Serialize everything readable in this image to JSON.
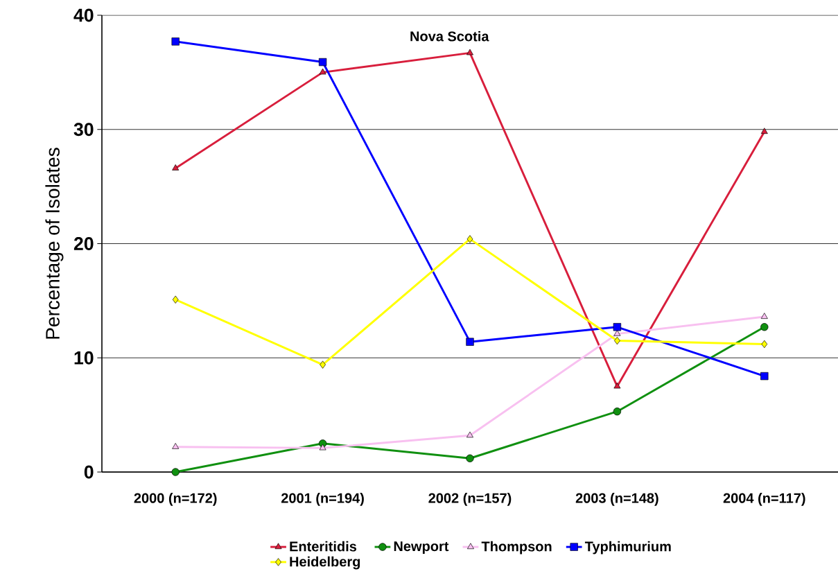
{
  "chart_data": {
    "type": "line",
    "title": "Nova Scotia",
    "ylabel": "Percentage of Isolates",
    "categories": [
      "2000 (n=172)",
      "2001 (n=194)",
      "2002 (n=157)",
      "2003 (n=148)",
      "2004 (n=117)"
    ],
    "series": [
      {
        "name": "Enteritidis",
        "color": "#d81e3c",
        "marker": "triangle",
        "values": [
          26.6,
          35.0,
          36.7,
          7.5,
          29.8
        ]
      },
      {
        "name": "Newport",
        "color": "#109010",
        "marker": "circle",
        "values": [
          0,
          2.5,
          1.2,
          5.3,
          12.7
        ]
      },
      {
        "name": "Thompson",
        "color": "#f8c0f0",
        "marker": "triangle",
        "values": [
          2.2,
          2.1,
          3.2,
          12.1,
          13.6
        ]
      },
      {
        "name": "Typhimurium",
        "color": "#0000ff",
        "marker": "square",
        "values": [
          37.7,
          35.9,
          11.4,
          12.7,
          8.4
        ]
      },
      {
        "name": "Heidelberg",
        "color": "#ffff00",
        "marker": "diamond",
        "values": [
          15.1,
          9.4,
          20.4,
          11.5,
          11.2
        ]
      }
    ],
    "ylim": [
      0,
      40
    ],
    "yticks": [
      0,
      10,
      20,
      30,
      40
    ],
    "grid": "y",
    "legend": "bottom"
  }
}
